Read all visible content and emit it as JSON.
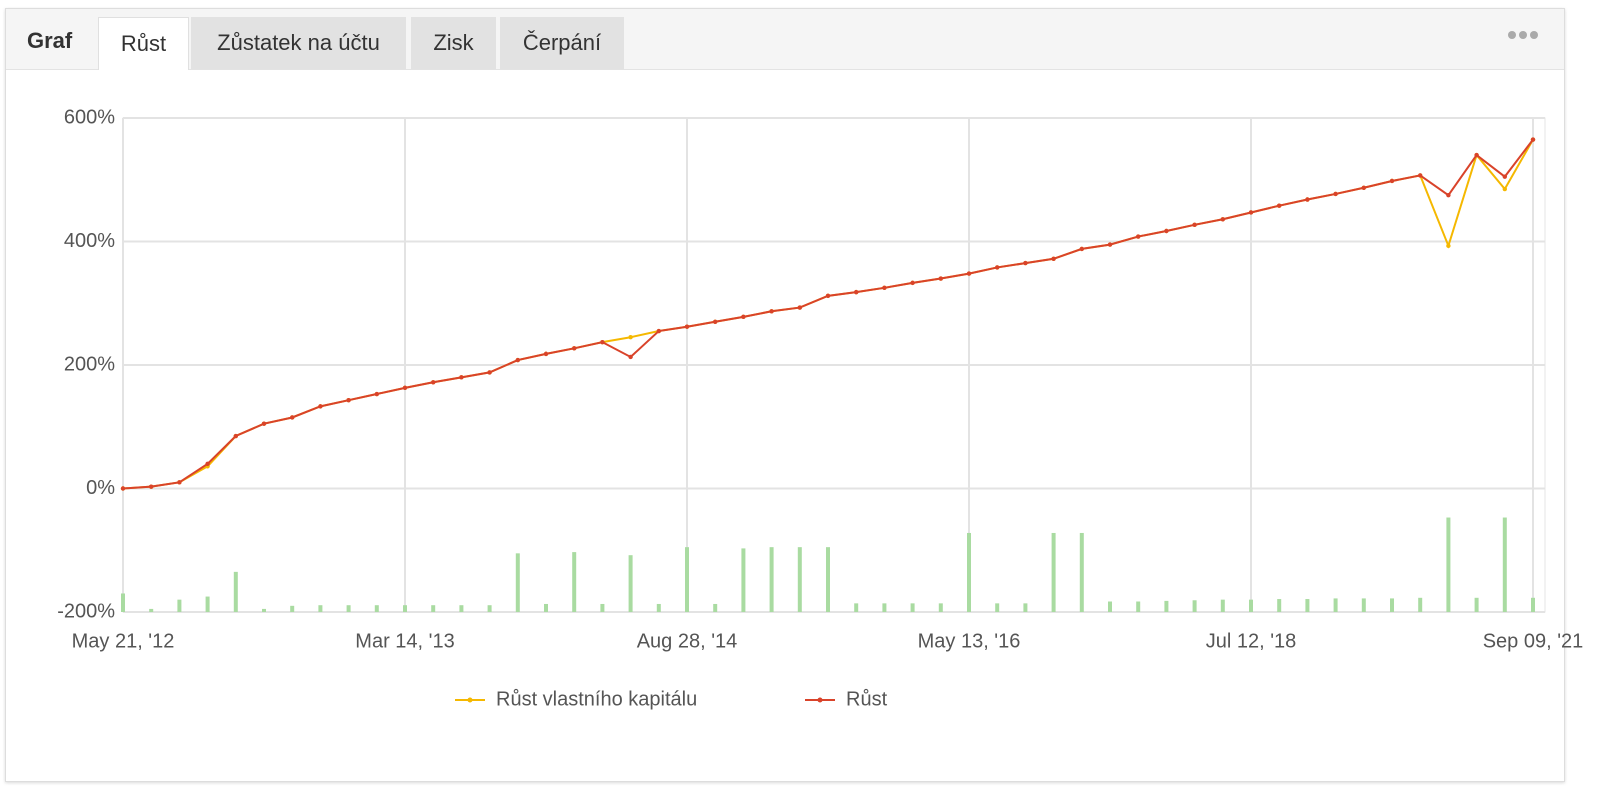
{
  "tabs": {
    "label": "Graf",
    "items": [
      "Růst",
      "Zůstatek na účtu",
      "Zisk",
      "Čerpání"
    ],
    "active": 0
  },
  "chart_data": {
    "type": "line",
    "categories": [
      "May 21, '12",
      null,
      null,
      null,
      null,
      null,
      null,
      null,
      null,
      null,
      "Mar 14, '13",
      null,
      null,
      null,
      null,
      null,
      null,
      null,
      null,
      null,
      "Aug 28, '14",
      null,
      null,
      null,
      null,
      null,
      null,
      null,
      null,
      null,
      "May 13, '16",
      null,
      null,
      null,
      null,
      null,
      null,
      null,
      null,
      null,
      "Jul 12, '18",
      null,
      null,
      null,
      null,
      null,
      null,
      null,
      null,
      null,
      "Sep 09, '21"
    ],
    "series": [
      {
        "type": "bar",
        "color": "#a9dba1",
        "values": [
          -170,
          -195,
          -180,
          -175,
          -135,
          -195,
          -190,
          -189,
          -189,
          -189,
          -189,
          -189,
          -189,
          -189,
          -105,
          -187,
          -103,
          -187,
          -108,
          -187,
          -95,
          -187,
          -97,
          -95,
          -95,
          -95,
          -186,
          -186,
          -186,
          -186,
          -72,
          -186,
          -186,
          -72,
          -72,
          -183,
          -183,
          -182,
          -181,
          -180,
          -180,
          -179,
          -179,
          -178,
          -178,
          -178,
          -177,
          -47,
          -177,
          -47,
          -177
        ]
      },
      {
        "name": "Růst vlastního kapitálu",
        "color": "#f5b800",
        "values": [
          0,
          3,
          10,
          36,
          85,
          105,
          115,
          133,
          143,
          153,
          163,
          172,
          180,
          188,
          208,
          218,
          227,
          237,
          245,
          255,
          262,
          270,
          278,
          287,
          293,
          312,
          318,
          325,
          333,
          340,
          348,
          358,
          365,
          372,
          388,
          395,
          408,
          417,
          427,
          436,
          447,
          458,
          468,
          477,
          487,
          498,
          507,
          393,
          540,
          485,
          565
        ]
      },
      {
        "name": "Růst",
        "color": "#d9432a",
        "values": [
          0,
          3,
          10,
          40,
          85,
          105,
          115,
          133,
          143,
          153,
          163,
          172,
          180,
          188,
          208,
          218,
          227,
          237,
          213,
          255,
          262,
          270,
          278,
          287,
          293,
          312,
          318,
          325,
          333,
          340,
          348,
          358,
          365,
          372,
          388,
          395,
          408,
          417,
          427,
          436,
          447,
          458,
          468,
          477,
          487,
          498,
          507,
          475,
          540,
          505,
          565
        ]
      }
    ],
    "ylim": [
      -200,
      600
    ],
    "yticks": [
      {
        "value": -200,
        "label": "-200%"
      },
      {
        "value": 0,
        "label": "0%"
      },
      {
        "value": 200,
        "label": "200%"
      },
      {
        "value": 400,
        "label": "400%"
      },
      {
        "value": 600,
        "label": "600%"
      }
    ],
    "grid": true,
    "legend": "bottom"
  }
}
